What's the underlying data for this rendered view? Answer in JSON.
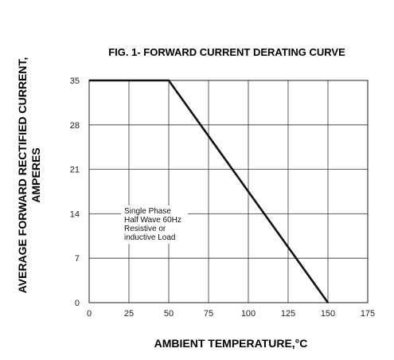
{
  "chart_data": {
    "type": "line",
    "title": "FIG. 1- FORWARD CURRENT DERATING CURVE",
    "xlabel": "AMBIENT TEMPERATURE,°C",
    "ylabel_lines": [
      "AVERAGE FORWARD RECTIFIED CURRENT,",
      "AMPERES"
    ],
    "x_ticks": [
      0,
      25,
      50,
      75,
      100,
      125,
      150,
      175
    ],
    "y_ticks": [
      0,
      7,
      14,
      21,
      28,
      35
    ],
    "xlim": [
      0,
      175
    ],
    "ylim": [
      0,
      35
    ],
    "grid": true,
    "series": [
      {
        "x": [
          0,
          50,
          150
        ],
        "y": [
          35,
          35,
          0
        ]
      }
    ],
    "annotation_lines": [
      "Single Phase",
      "Half Wave 60Hz",
      "Resistive or",
      "inductive Load"
    ]
  }
}
